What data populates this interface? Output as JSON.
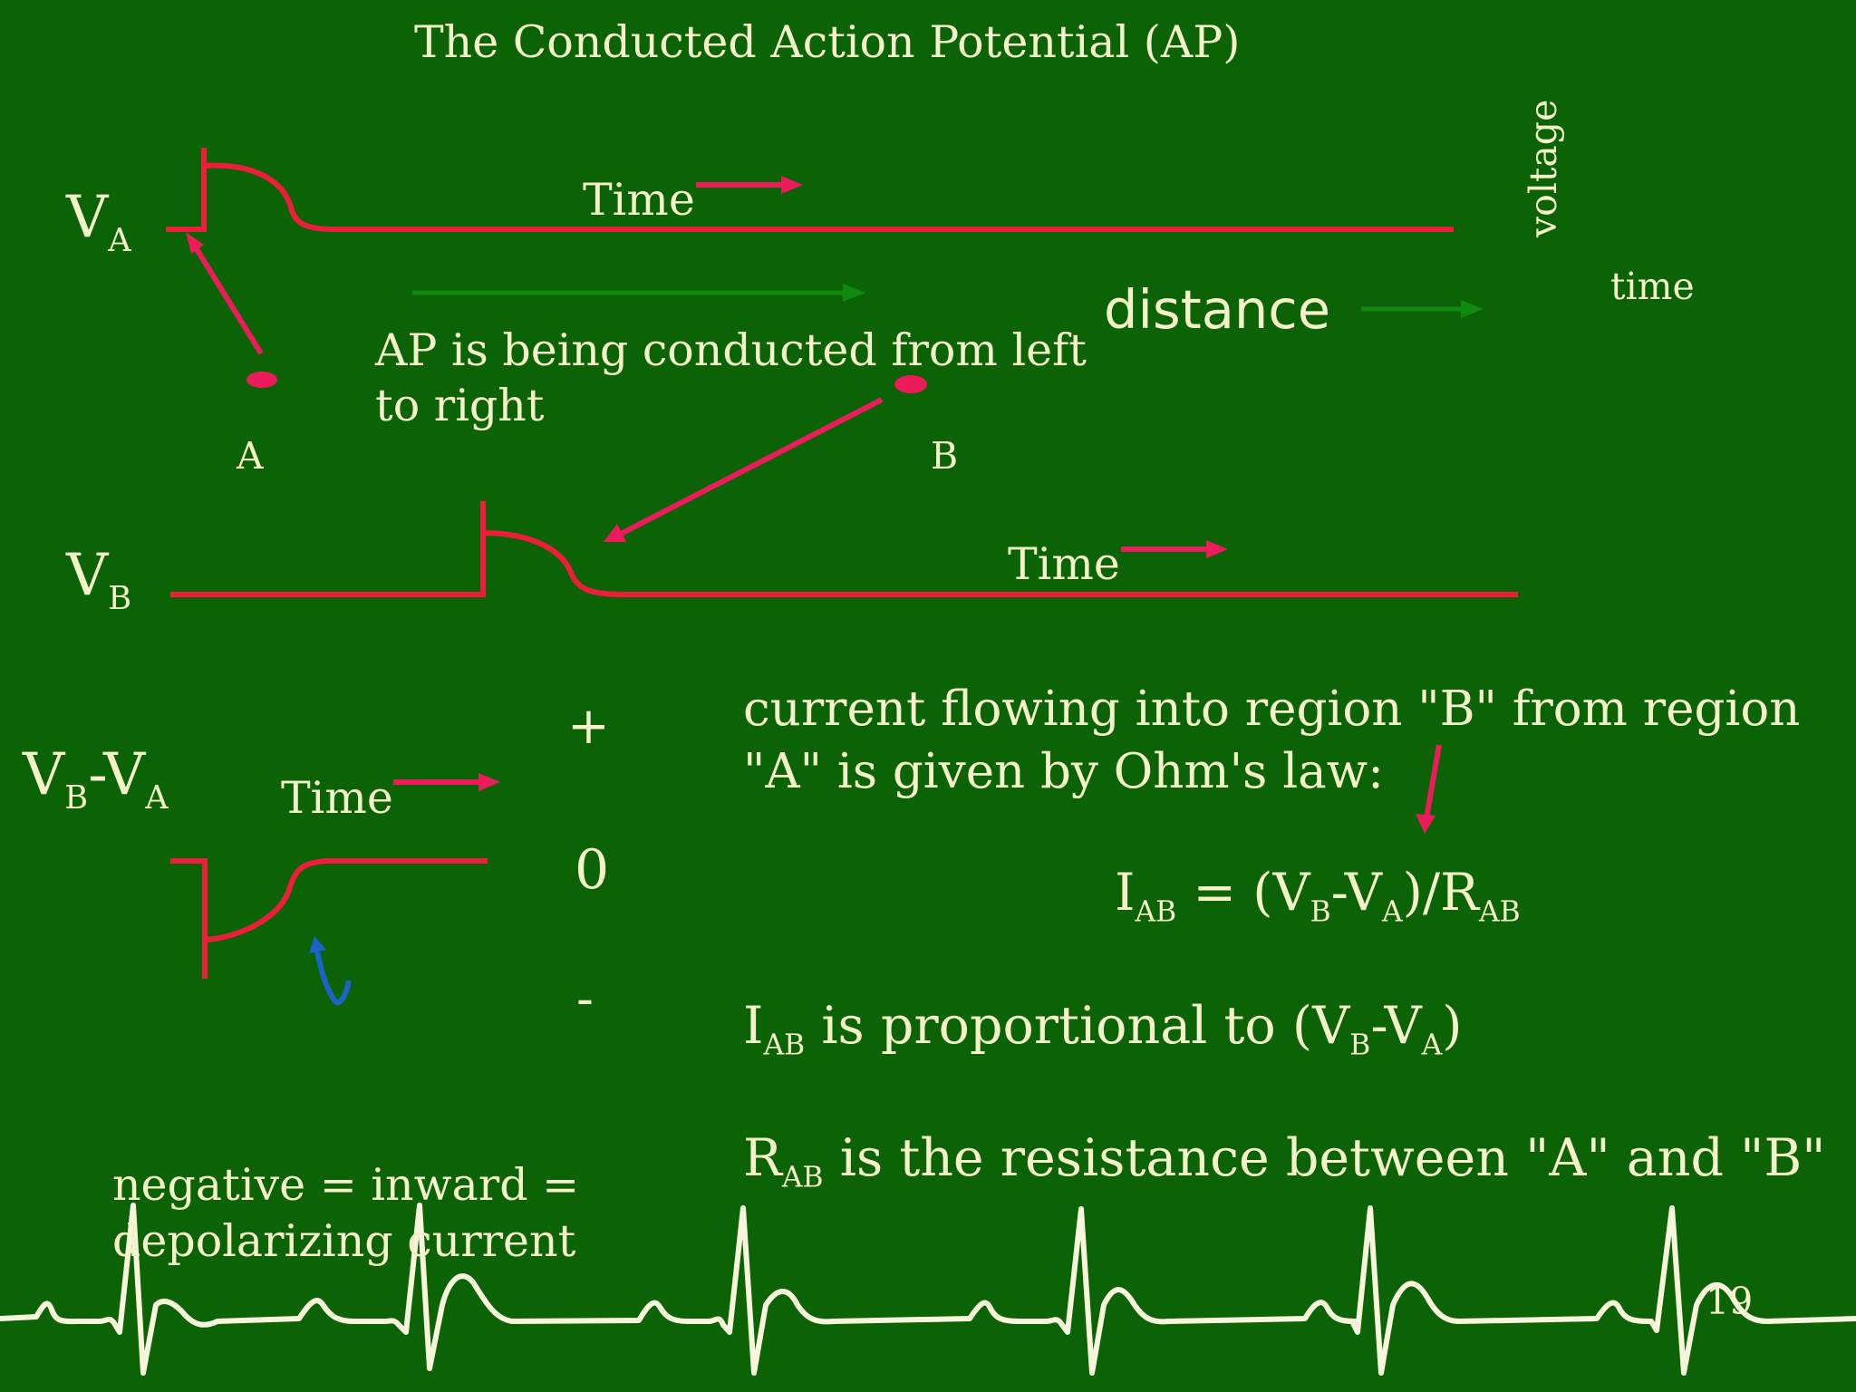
{
  "title": "The Conducted Action Potential (AP)",
  "labels": {
    "v": "V",
    "a": "A",
    "b": "B",
    "minus": "-",
    "time": "Time",
    "voltage": "voltage",
    "time_axis": "time",
    "distance": "distance",
    "conduction_line1": "AP is being conducted from left",
    "conduction_line2": "to right",
    "point_a": "A",
    "point_b": "B",
    "plus": "+",
    "zero": "0",
    "neg": "-"
  },
  "text": {
    "current_line1": "current flowing into region \"B\" from region",
    "current_line2": "\"A\" is given by Ohm's law:",
    "eq_i": "I",
    "eq_ab": "AB",
    "eq_mid": " = (V",
    "eq_b": "B",
    "eq_dash": "-V",
    "eq_a": "A",
    "eq_close": ")/R",
    "prop_i": "I",
    "prop_ab": "AB",
    "prop_text": "is proportional to (V",
    "prop_b": "B",
    "prop_dash": "-V",
    "prop_a": "A",
    "prop_close": ")",
    "res_r": "R",
    "res_ab": "AB",
    "res_text": "is the resistance between \"A\" and \"B\"",
    "neg_line1": "negative = inward =",
    "neg_line2": "depolarizing current"
  },
  "page_number": "19",
  "colors": {
    "background": "#0b6306",
    "text": "#f3f2c8",
    "trace": "#ee1d3b",
    "arrow": "#ec1b5c",
    "green_arrow": "#0e8a0e",
    "blue_arrow": "#1a63c8",
    "ecg": "#f7f6dc"
  }
}
